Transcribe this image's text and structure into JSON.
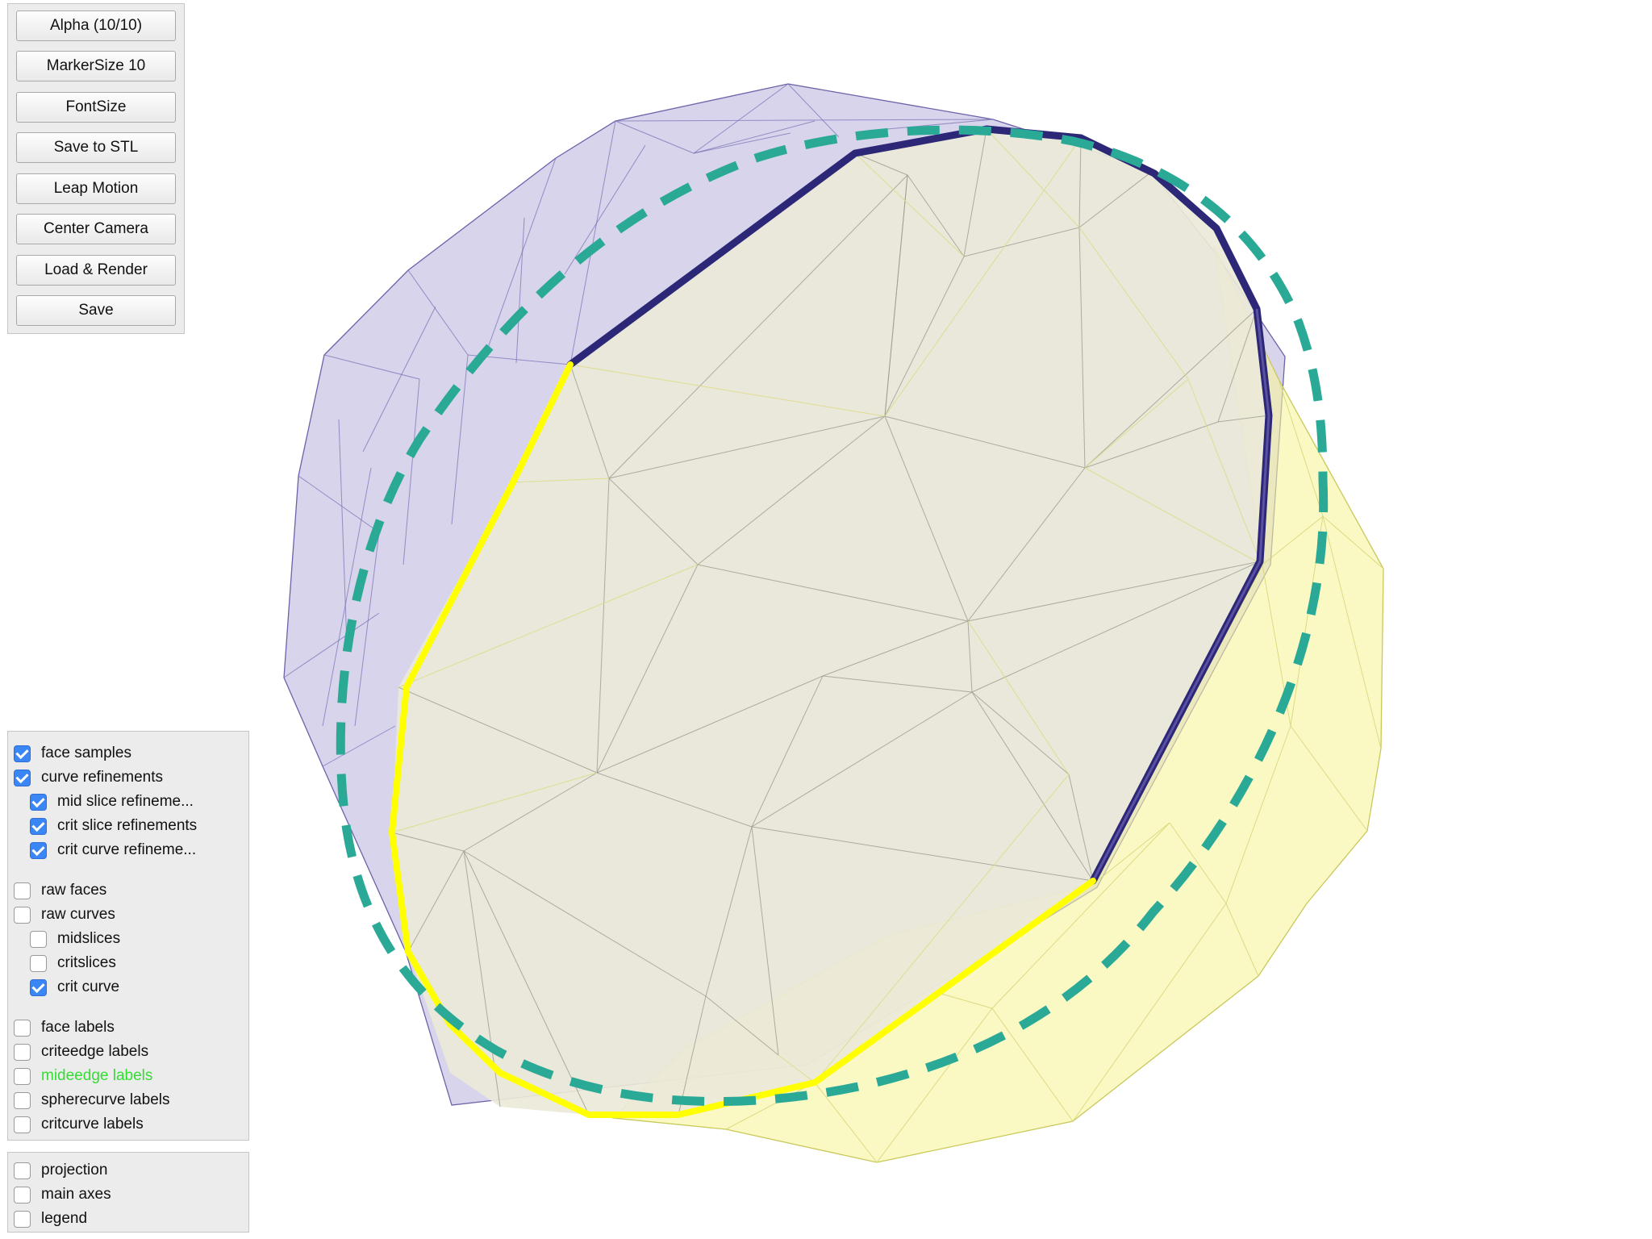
{
  "toolbar": {
    "buttons": [
      {
        "label": "Alpha (10/10)"
      },
      {
        "label": "MarkerSize 10"
      },
      {
        "label": "FontSize"
      },
      {
        "label": "Save to STL"
      },
      {
        "label": "Leap Motion"
      },
      {
        "label": "Center Camera"
      },
      {
        "label": "Load & Render"
      },
      {
        "label": "Save"
      }
    ]
  },
  "layers": {
    "group1": [
      {
        "label": "face samples",
        "checked": true
      },
      {
        "label": "curve refinements",
        "checked": true
      },
      {
        "label": "mid slice refineme...",
        "checked": true
      },
      {
        "label": "crit slice refinements",
        "checked": true
      },
      {
        "label": "crit curve refineme...",
        "checked": true
      }
    ],
    "group2": [
      {
        "label": "raw faces",
        "checked": false
      },
      {
        "label": "raw curves",
        "checked": false
      },
      {
        "label": "midslices",
        "checked": false
      },
      {
        "label": "critslices",
        "checked": false
      },
      {
        "label": "crit curve",
        "checked": true
      }
    ],
    "group3": [
      {
        "label": "face labels",
        "checked": false
      },
      {
        "label": "criteedge labels",
        "checked": false
      },
      {
        "label": "mideedge labels",
        "checked": false,
        "color": "#33dd33"
      },
      {
        "label": "spherecurve labels",
        "checked": false
      },
      {
        "label": "critcurve labels",
        "checked": false
      }
    ]
  },
  "display": {
    "items": [
      {
        "label": "projection",
        "checked": false
      },
      {
        "label": "main axes",
        "checked": false
      },
      {
        "label": "legend",
        "checked": false
      }
    ]
  },
  "scene": {
    "colors": {
      "purple_surface": "#b7b1dc",
      "yellow_surface": "#f6f59c",
      "front_face": "#ebe9d8",
      "dark_curve": "#2c2777",
      "yellow_curve": "#ffff00",
      "dashed_curve": "#2aaa96"
    }
  }
}
